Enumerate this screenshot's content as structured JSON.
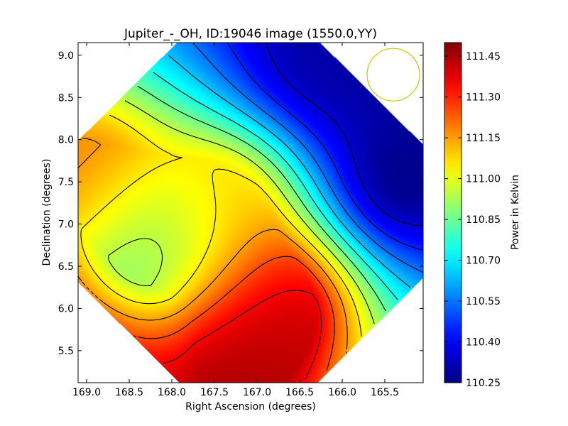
{
  "chart_data": {
    "type": "heatmap",
    "title": "Jupiter_-_OH, ID:19046 image (1550.0,YY)",
    "xlabel": "Right Ascension (degrees)",
    "ylabel": "Declination (degrees)",
    "xlim": [
      169.1,
      165.05
    ],
    "ylim": [
      5.12,
      9.15
    ],
    "x_ticks": [
      "169.0",
      "168.5",
      "168.0",
      "167.5",
      "167.0",
      "166.5",
      "166.0",
      "165.5"
    ],
    "y_ticks": [
      "5.5",
      "6.0",
      "6.5",
      "7.0",
      "7.5",
      "8.0",
      "8.5",
      "9.0"
    ],
    "colorbar": {
      "label": "Power in Kelvin",
      "range": [
        110.25,
        111.5
      ],
      "ticks": [
        "111.45",
        "111.30",
        "111.15",
        "111.00",
        "110.85",
        "110.70",
        "110.55",
        "110.40",
        "110.25"
      ],
      "colormap": "jet"
    },
    "field_features": [
      {
        "ra": 167.3,
        "dec": 5.15,
        "value": 111.45,
        "kind": "maximum"
      },
      {
        "ra": 166.7,
        "dec": 6.0,
        "value": 111.4,
        "kind": "local maximum"
      },
      {
        "ra": 169.0,
        "dec": 7.6,
        "value": 111.2,
        "kind": "local maximum"
      },
      {
        "ra": 167.4,
        "dec": 7.25,
        "value": 111.12,
        "kind": "local maximum"
      },
      {
        "ra": 168.2,
        "dec": 6.8,
        "value": 110.82,
        "kind": "saddle"
      },
      {
        "ra": 165.3,
        "dec": 7.5,
        "value": 110.26,
        "kind": "minimum"
      },
      {
        "ra": 166.3,
        "dec": 8.9,
        "value": 110.3,
        "kind": "minimum"
      }
    ],
    "contour_levels": [
      110.35,
      110.45,
      110.55,
      110.65,
      110.75,
      110.85,
      110.95,
      111.05,
      111.15,
      111.25,
      111.35
    ],
    "beam_marker": {
      "ra": 165.4,
      "dec": 8.77,
      "shape": "circle",
      "color": "#c8c800"
    },
    "colors": {
      "contour": "#000000",
      "beam": "#c8c800"
    }
  }
}
